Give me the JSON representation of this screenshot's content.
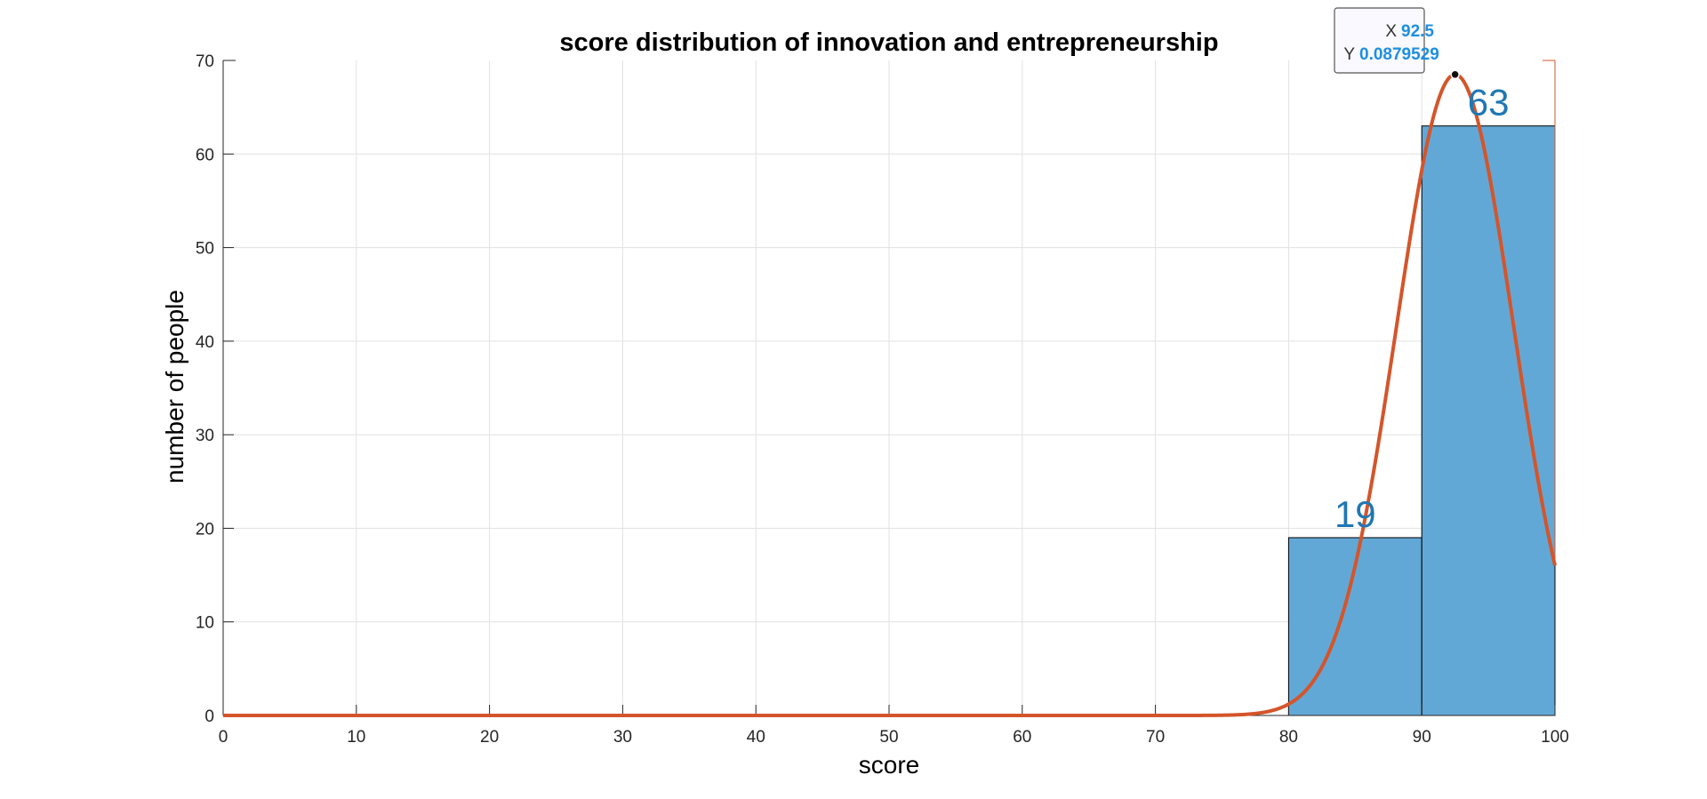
{
  "chart_data": {
    "type": "bar",
    "title": "score distribution of  innovation and entrepreneurship",
    "xlabel": "score",
    "ylabel": "number of people",
    "xlim": [
      0,
      100
    ],
    "ylim": [
      0,
      70
    ],
    "xticks": [
      0,
      10,
      20,
      30,
      40,
      50,
      60,
      70,
      80,
      90,
      100
    ],
    "yticks": [
      0,
      10,
      20,
      30,
      40,
      50,
      60,
      70
    ],
    "grid": true,
    "bins": [
      {
        "range": [
          80,
          90
        ],
        "value": 19,
        "label": "19"
      },
      {
        "range": [
          90,
          100
        ],
        "value": 63,
        "label": "63"
      }
    ],
    "fit_curve": {
      "type": "normal",
      "mean": 92.5,
      "sd": 4.4,
      "peak_count": 68.5
    },
    "datatip": {
      "x_key": "X",
      "x_value": "92.5",
      "y_key": "Y",
      "y_value": "0.0879529"
    },
    "colors": {
      "bar": "#62a8d7",
      "curve": "#d4552a",
      "label": "#1f77b4",
      "tip_value": "#1e8fe1"
    }
  }
}
